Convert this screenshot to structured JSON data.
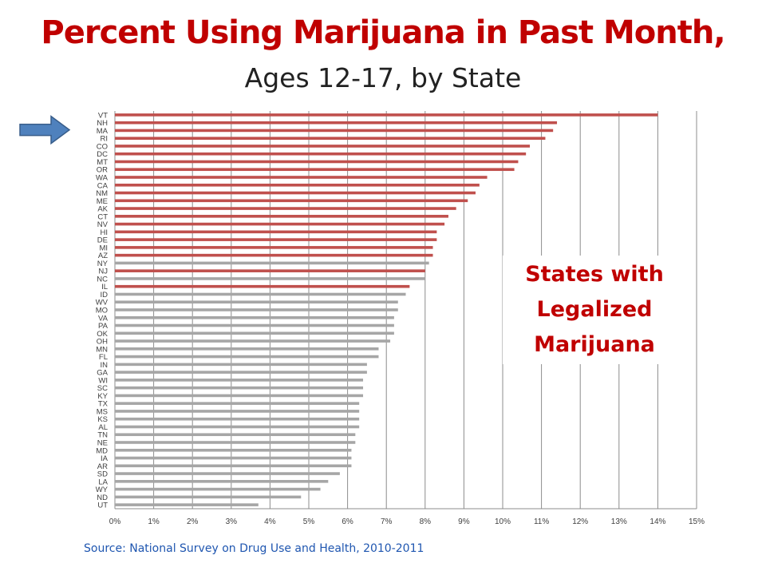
{
  "title": "Percent Using Marijuana in Past Month,",
  "subtitle": "Ages 12-17, by State",
  "source": "Source: National Survey on Drug Use and Health, 2010-2011",
  "annotation": {
    "line1": "States with",
    "line2": "Legalized",
    "line3": "Marijuana"
  },
  "colors": {
    "title": "#c00000",
    "legal": "#c0504d",
    "other": "#a6a6a6",
    "arrow": "#4f81bd",
    "annotation": "#c00000"
  },
  "chart_data": {
    "type": "bar",
    "orientation": "horizontal",
    "xlim": [
      0,
      15
    ],
    "xticks": [
      "0%",
      "1%",
      "2%",
      "3%",
      "4%",
      "5%",
      "6%",
      "7%",
      "8%",
      "9%",
      "10%",
      "11%",
      "12%",
      "13%",
      "14%",
      "15%"
    ],
    "grid": true,
    "highlighted_state": "NH",
    "categories": [
      "VT",
      "NH",
      "MA",
      "RI",
      "CO",
      "DC",
      "MT",
      "OR",
      "WA",
      "CA",
      "NM",
      "ME",
      "AK",
      "CT",
      "NV",
      "HI",
      "DE",
      "MI",
      "AZ",
      "NY",
      "NJ",
      "NC",
      "IL",
      "ID",
      "WV",
      "MO",
      "VA",
      "PA",
      "OK",
      "OH",
      "MN",
      "FL",
      "IN",
      "GA",
      "WI",
      "SC",
      "KY",
      "TX",
      "MS",
      "KS",
      "AL",
      "TN",
      "NE",
      "MD",
      "IA",
      "AR",
      "SD",
      "LA",
      "WY",
      "ND",
      "UT"
    ],
    "values": [
      14.0,
      11.4,
      11.3,
      11.1,
      10.7,
      10.6,
      10.4,
      10.3,
      9.6,
      9.4,
      9.3,
      9.1,
      8.8,
      8.6,
      8.5,
      8.3,
      8.3,
      8.2,
      8.2,
      8.1,
      8.0,
      8.0,
      7.6,
      7.5,
      7.3,
      7.3,
      7.2,
      7.2,
      7.2,
      7.1,
      6.8,
      6.8,
      6.5,
      6.5,
      6.4,
      6.4,
      6.4,
      6.3,
      6.3,
      6.3,
      6.3,
      6.2,
      6.2,
      6.1,
      6.1,
      6.1,
      5.8,
      5.5,
      5.3,
      4.8,
      3.7
    ],
    "legalized": [
      true,
      true,
      true,
      true,
      true,
      true,
      true,
      true,
      true,
      true,
      true,
      true,
      true,
      true,
      true,
      true,
      true,
      true,
      true,
      false,
      true,
      false,
      true,
      false,
      false,
      false,
      false,
      false,
      false,
      false,
      false,
      false,
      false,
      false,
      false,
      false,
      false,
      false,
      false,
      false,
      false,
      false,
      false,
      false,
      false,
      false,
      false,
      false,
      false,
      false,
      false
    ]
  }
}
